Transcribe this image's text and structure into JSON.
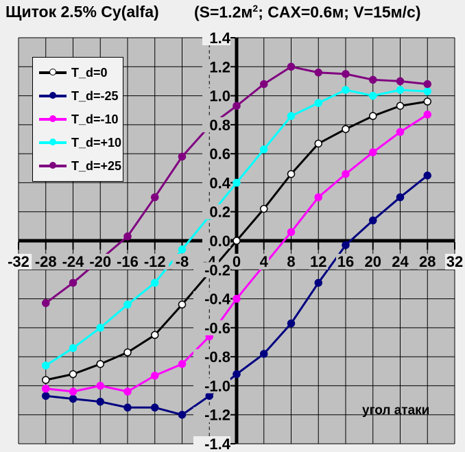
{
  "window": {
    "title_left": "Щиток 2.5% Cy(alfa)",
    "title_right_pre": "(S=1.2м",
    "title_right_sup": "2",
    "title_right_post": "; CAX=0.6м; V=15м/с)"
  },
  "colors": {
    "plot_bg": "#c0c0c0",
    "outer_bg": "#efefef",
    "grid": "#000000",
    "axis": "#000000"
  },
  "chart_data": {
    "type": "line",
    "title": "Щиток 2.5% Cy(alfa)   (S=1.2м²; CAX=0.6м; V=15м/с)",
    "xlabel": "угол атаки",
    "ylabel": "",
    "xlim": [
      -32,
      32
    ],
    "ylim": [
      -1.4,
      1.4
    ],
    "x_ticks": [
      -32,
      -28,
      -24,
      -20,
      -16,
      -12,
      -8,
      -4,
      0,
      4,
      8,
      12,
      16,
      20,
      24,
      28,
      32
    ],
    "y_ticks": [
      1.4,
      1.2,
      1.0,
      0.8,
      0.6,
      0.4,
      0.2,
      0.0,
      -0.2,
      -0.4,
      -0.6,
      -0.8,
      -1.0,
      -1.2,
      -1.4
    ],
    "grid": "on",
    "legend_position": "upper-left",
    "dashed_gridline_x": -4,
    "x": [
      -28,
      -24,
      -20,
      -16,
      -12,
      -8,
      -4,
      0,
      4,
      8,
      12,
      16,
      20,
      24,
      28
    ],
    "series": [
      {
        "name": "T_d=0",
        "color": "#000000",
        "marker_fill": "#ffffff",
        "values": [
          -0.96,
          -0.92,
          -0.85,
          -0.77,
          -0.65,
          -0.44,
          -0.22,
          0.0,
          0.22,
          0.46,
          0.67,
          0.77,
          0.86,
          0.93,
          0.96
        ]
      },
      {
        "name": "T_d=-25",
        "color": "#000080",
        "marker_fill": "#000080",
        "values": [
          -1.07,
          -1.09,
          -1.11,
          -1.15,
          -1.15,
          -1.2,
          -1.07,
          -0.92,
          -0.78,
          -0.57,
          -0.29,
          -0.03,
          0.14,
          0.3,
          0.45
        ]
      },
      {
        "name": "T_d=-10",
        "color": "#ff00ff",
        "marker_fill": "#ff00ff",
        "values": [
          -1.02,
          -1.04,
          -1.0,
          -1.04,
          -0.93,
          -0.85,
          -0.66,
          -0.4,
          -0.17,
          0.06,
          0.3,
          0.46,
          0.61,
          0.75,
          0.87
        ]
      },
      {
        "name": "T_d=+10",
        "color": "#00ffff",
        "marker_fill": "#00ffff",
        "values": [
          -0.86,
          -0.74,
          -0.6,
          -0.44,
          -0.29,
          -0.06,
          0.17,
          0.4,
          0.63,
          0.86,
          0.95,
          1.04,
          1.0,
          1.04,
          1.03
        ]
      },
      {
        "name": "T_d=+25",
        "color": "#800080",
        "marker_fill": "#800080",
        "values": [
          -0.43,
          -0.29,
          -0.13,
          0.03,
          0.3,
          0.58,
          0.79,
          0.93,
          1.08,
          1.2,
          1.16,
          1.15,
          1.11,
          1.1,
          1.08
        ]
      }
    ]
  }
}
